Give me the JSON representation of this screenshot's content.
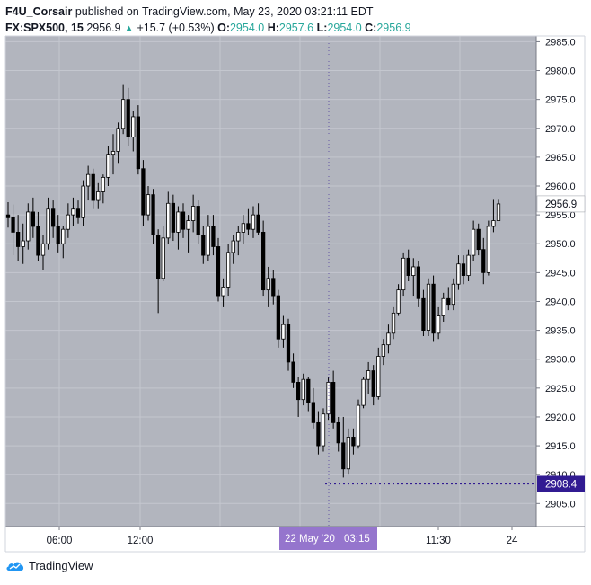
{
  "header": {
    "author": "F4U_Corsair",
    "published_text": "published on TradingView.com, May 23, 2020 03:21:11 EDT",
    "symbol_interval": "FX:SPX500, 15",
    "last_price": "2956.9",
    "change_arrow": "▲",
    "change_text": "+15.7 (+0.53%)",
    "open_label": "O:",
    "open": "2954.0",
    "high_label": "H:",
    "high": "2957.6",
    "low_label": "L:",
    "low": "2954.0",
    "close_label": "C:",
    "close": "2956.9"
  },
  "footer": {
    "brand": "TradingView"
  },
  "colors": {
    "plot_bg": "#b2b5be",
    "candle": "#000000",
    "axis_bg": "#ffffff",
    "price_label_bg": "#ffffff",
    "crosshair_label_bg": "#311b92",
    "time_label_bg": "#9575cd",
    "crosshair_line": "#311b92"
  },
  "chart_data": {
    "type": "candlestick",
    "interval": "15",
    "ylim": [
      2901,
      2986
    ],
    "y_ticks": [
      2905,
      2910,
      2915,
      2920,
      2925,
      2930,
      2935,
      2940,
      2945,
      2950,
      2955,
      2960,
      2965,
      2970,
      2975,
      2980,
      2985
    ],
    "y_tick_labels": [
      "2905.0",
      "2910.0",
      "2915.0",
      "2920.0",
      "2925.0",
      "2930.0",
      "2935.0",
      "2940.0",
      "2945.0",
      "2950.0",
      "2955.0",
      "2960.0",
      "2965.0",
      "2970.0",
      "2975.0",
      "2980.0",
      "2985.0"
    ],
    "x_ticks": [
      "06:00",
      "12:00",
      "22 May '20",
      "03:15",
      "11:30",
      "24"
    ],
    "crosshair": {
      "time_label": "22 May '20",
      "time_value": "03:15",
      "price_label": "2908.4",
      "price": 2908.4
    },
    "last_price_label": "2956.9",
    "last_price": 2956.9,
    "candles": [
      [
        2955.0,
        2957.2,
        2952.8,
        2954.5
      ],
      [
        2954.5,
        2956.8,
        2948.0,
        2952.0
      ],
      [
        2952.0,
        2955.0,
        2947.0,
        2949.5
      ],
      [
        2949.5,
        2953.5,
        2946.5,
        2950.5
      ],
      [
        2950.5,
        2957.0,
        2949.0,
        2955.5
      ],
      [
        2955.5,
        2958.0,
        2951.0,
        2953.0
      ],
      [
        2953.0,
        2955.5,
        2947.0,
        2948.0
      ],
      [
        2948.0,
        2951.5,
        2945.5,
        2950.0
      ],
      [
        2950.0,
        2958.0,
        2949.0,
        2956.0
      ],
      [
        2956.0,
        2957.5,
        2951.0,
        2953.0
      ],
      [
        2953.0,
        2955.0,
        2948.5,
        2950.0
      ],
      [
        2950.0,
        2953.0,
        2947.5,
        2952.5
      ],
      [
        2952.5,
        2957.0,
        2951.0,
        2955.0
      ],
      [
        2955.0,
        2958.0,
        2953.0,
        2956.0
      ],
      [
        2956.0,
        2957.5,
        2953.5,
        2954.5
      ],
      [
        2954.5,
        2961.0,
        2953.0,
        2960.0
      ],
      [
        2960.0,
        2963.5,
        2957.5,
        2962.0
      ],
      [
        2962.0,
        2963.0,
        2956.0,
        2957.5
      ],
      [
        2957.5,
        2960.5,
        2956.0,
        2959.0
      ],
      [
        2959.0,
        2962.0,
        2957.0,
        2961.5
      ],
      [
        2961.5,
        2967.0,
        2960.0,
        2965.5
      ],
      [
        2965.5,
        2969.0,
        2962.0,
        2966.0
      ],
      [
        2966.0,
        2971.0,
        2964.0,
        2970.0
      ],
      [
        2970.0,
        2977.5,
        2969.0,
        2975.0
      ],
      [
        2975.0,
        2977.0,
        2967.0,
        2968.5
      ],
      [
        2968.5,
        2973.0,
        2966.0,
        2972.0
      ],
      [
        2972.0,
        2974.0,
        2962.0,
        2963.0
      ],
      [
        2963.0,
        2964.5,
        2953.0,
        2955.0
      ],
      [
        2955.0,
        2960.0,
        2954.0,
        2958.5
      ],
      [
        2958.5,
        2959.5,
        2950.0,
        2951.5
      ],
      [
        2951.5,
        2952.5,
        2938.0,
        2944.0
      ],
      [
        2944.0,
        2953.0,
        2943.5,
        2951.0
      ],
      [
        2951.0,
        2959.0,
        2950.0,
        2957.0
      ],
      [
        2957.0,
        2958.5,
        2950.5,
        2952.0
      ],
      [
        2952.0,
        2956.5,
        2949.0,
        2955.5
      ],
      [
        2955.5,
        2957.0,
        2951.0,
        2952.5
      ],
      [
        2952.5,
        2955.0,
        2948.5,
        2954.0
      ],
      [
        2954.0,
        2958.5,
        2952.0,
        2956.5
      ],
      [
        2956.5,
        2957.5,
        2950.0,
        2951.5
      ],
      [
        2951.5,
        2953.0,
        2946.5,
        2948.0
      ],
      [
        2948.0,
        2955.0,
        2947.0,
        2953.0
      ],
      [
        2953.0,
        2955.0,
        2948.0,
        2949.5
      ],
      [
        2949.5,
        2951.0,
        2940.0,
        2941.0
      ],
      [
        2941.0,
        2944.0,
        2939.0,
        2942.5
      ],
      [
        2942.5,
        2950.0,
        2941.0,
        2948.5
      ],
      [
        2948.5,
        2951.5,
        2946.5,
        2950.5
      ],
      [
        2950.5,
        2953.0,
        2948.0,
        2952.0
      ],
      [
        2952.0,
        2955.0,
        2950.0,
        2953.5
      ],
      [
        2953.5,
        2956.0,
        2951.5,
        2952.5
      ],
      [
        2952.5,
        2956.5,
        2951.0,
        2955.0
      ],
      [
        2955.0,
        2957.0,
        2951.5,
        2952.0
      ],
      [
        2952.0,
        2954.0,
        2941.0,
        2942.0
      ],
      [
        2942.0,
        2946.0,
        2939.0,
        2944.0
      ],
      [
        2944.0,
        2945.5,
        2939.5,
        2941.0
      ],
      [
        2941.0,
        2942.0,
        2932.0,
        2933.5
      ],
      [
        2933.5,
        2937.5,
        2932.0,
        2936.0
      ],
      [
        2936.0,
        2937.0,
        2928.0,
        2929.5
      ],
      [
        2929.5,
        2931.0,
        2925.0,
        2926.0
      ],
      [
        2926.0,
        2927.0,
        2920.0,
        2923.0
      ],
      [
        2923.0,
        2927.5,
        2922.0,
        2926.5
      ],
      [
        2926.5,
        2927.0,
        2921.0,
        2922.5
      ],
      [
        2922.5,
        2925.0,
        2918.0,
        2919.0
      ],
      [
        2919.0,
        2921.0,
        2913.5,
        2915.0
      ],
      [
        2915.0,
        2921.5,
        2914.0,
        2920.5
      ],
      [
        2920.5,
        2927.0,
        2919.5,
        2926.0
      ],
      [
        2926.0,
        2928.0,
        2918.0,
        2919.0
      ],
      [
        2919.0,
        2920.0,
        2914.0,
        2915.5
      ],
      [
        2915.5,
        2920.0,
        2909.5,
        2911.0
      ],
      [
        2911.0,
        2918.0,
        2910.0,
        2916.5
      ],
      [
        2916.5,
        2918.0,
        2913.5,
        2915.0
      ],
      [
        2915.0,
        2923.0,
        2914.5,
        2922.0
      ],
      [
        2922.0,
        2927.0,
        2921.5,
        2926.5
      ],
      [
        2926.5,
        2929.5,
        2924.0,
        2928.0
      ],
      [
        2928.0,
        2929.0,
        2922.0,
        2923.5
      ],
      [
        2923.5,
        2932.0,
        2923.0,
        2930.5
      ],
      [
        2930.5,
        2933.5,
        2929.0,
        2932.5
      ],
      [
        2932.5,
        2936.0,
        2931.0,
        2934.5
      ],
      [
        2934.5,
        2939.0,
        2933.5,
        2938.0
      ],
      [
        2938.0,
        2943.0,
        2937.5,
        2942.0
      ],
      [
        2942.0,
        2948.5,
        2941.0,
        2947.5
      ],
      [
        2947.5,
        2949.0,
        2943.5,
        2944.5
      ],
      [
        2944.5,
        2947.5,
        2941.0,
        2946.0
      ],
      [
        2946.0,
        2947.0,
        2939.0,
        2940.5
      ],
      [
        2940.5,
        2942.0,
        2934.0,
        2935.0
      ],
      [
        2935.0,
        2944.0,
        2934.0,
        2943.0
      ],
      [
        2943.0,
        2944.5,
        2933.0,
        2934.5
      ],
      [
        2934.5,
        2939.0,
        2933.5,
        2937.5
      ],
      [
        2937.5,
        2941.5,
        2936.5,
        2940.5
      ],
      [
        2940.5,
        2942.5,
        2938.5,
        2939.5
      ],
      [
        2939.5,
        2944.0,
        2938.5,
        2943.0
      ],
      [
        2943.0,
        2948.0,
        2942.0,
        2946.5
      ],
      [
        2946.5,
        2948.0,
        2943.0,
        2944.5
      ],
      [
        2944.5,
        2949.0,
        2943.5,
        2948.0
      ],
      [
        2948.0,
        2954.0,
        2947.0,
        2952.5
      ],
      [
        2952.5,
        2953.5,
        2948.0,
        2949.0
      ],
      [
        2949.0,
        2951.0,
        2943.0,
        2945.0
      ],
      [
        2945.0,
        2954.0,
        2944.5,
        2953.0
      ],
      [
        2953.0,
        2957.6,
        2952.0,
        2954.0
      ],
      [
        2954.0,
        2957.6,
        2954.0,
        2956.9
      ]
    ]
  }
}
